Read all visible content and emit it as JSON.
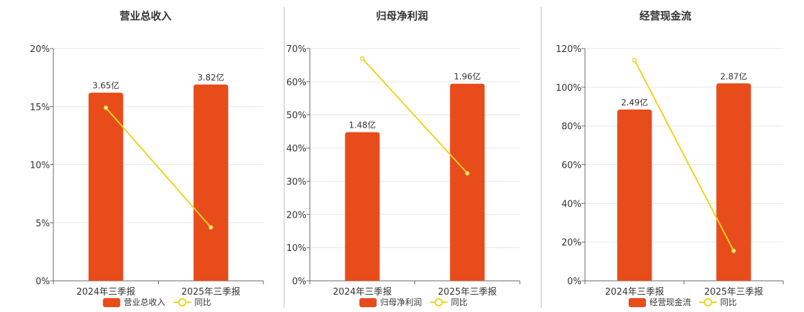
{
  "colors": {
    "bar": "#E84C1B",
    "line": "#F2D21B",
    "grid": "#E6E6E6",
    "axis": "#666666",
    "divider": "#BBBBBB"
  },
  "chart_data": [
    {
      "type": "bar",
      "title": "营业总收入",
      "categories": [
        "2024年三季报",
        "2025年三季报"
      ],
      "yticks": [
        "0%",
        "5%",
        "10%",
        "15%",
        "20%"
      ],
      "ylim": [
        0,
        20
      ],
      "series": [
        {
          "name": "营业总收入",
          "kind": "bar",
          "values": [
            16.2,
            16.9
          ],
          "labels": [
            "3.65亿",
            "3.82亿"
          ]
        },
        {
          "name": "同比",
          "kind": "line",
          "values": [
            14.9,
            4.6
          ]
        }
      ],
      "grid": true,
      "legend": "bottom-center"
    },
    {
      "type": "bar",
      "title": "归母净利润",
      "categories": [
        "2024年三季报",
        "2025年三季报"
      ],
      "yticks": [
        "0%",
        "10%",
        "20%",
        "30%",
        "40%",
        "50%",
        "60%",
        "70%"
      ],
      "ylim": [
        0,
        70
      ],
      "series": [
        {
          "name": "归母净利润",
          "kind": "bar",
          "values": [
            44.8,
            59.4
          ],
          "labels": [
            "1.48亿",
            "1.96亿"
          ]
        },
        {
          "name": "同比",
          "kind": "line",
          "values": [
            67.0,
            32.4
          ]
        }
      ],
      "grid": true,
      "legend": "bottom-center"
    },
    {
      "type": "bar",
      "title": "经营现金流",
      "categories": [
        "2024年三季报",
        "2025年三季报"
      ],
      "yticks": [
        "0%",
        "20%",
        "40%",
        "60%",
        "80%",
        "100%",
        "120%"
      ],
      "ylim": [
        0,
        120
      ],
      "series": [
        {
          "name": "经营现金流",
          "kind": "bar",
          "values": [
            88.5,
            102.0
          ],
          "labels": [
            "2.49亿",
            "2.87亿"
          ]
        },
        {
          "name": "同比",
          "kind": "line",
          "values": [
            114.0,
            15.5
          ]
        }
      ],
      "grid": true,
      "legend": "bottom-center"
    }
  ]
}
